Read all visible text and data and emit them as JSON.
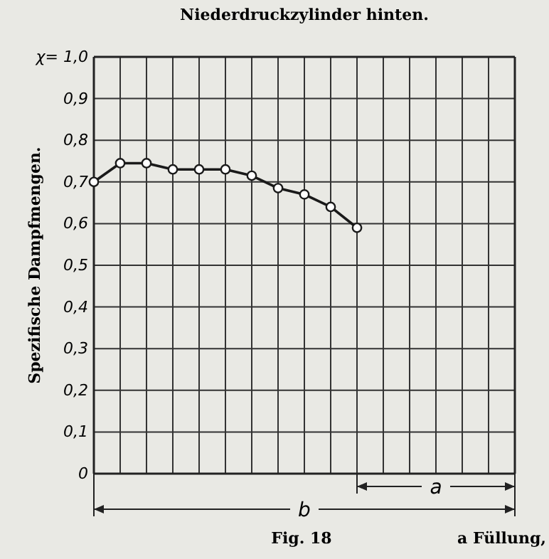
{
  "chart_data": {
    "type": "line",
    "title": "Niederdruckzylinder hinten.",
    "ylabel": "Spezifische Dampfmengen.",
    "categories": [
      null,
      null,
      null,
      null,
      null,
      null,
      null,
      null,
      null,
      null,
      null,
      null,
      null,
      null,
      null,
      null,
      null
    ],
    "series": [
      {
        "color": "#1a1a1a",
        "values": [
          0.7,
          0.745,
          0.745,
          0.73,
          0.73,
          0.73,
          0.715,
          0.685,
          0.67,
          0.64,
          0.59,
          null,
          null,
          null,
          null,
          null,
          null
        ]
      }
    ],
    "ylim": [
      0,
      1
    ],
    "yticks": [
      0,
      {
        "value": 0.1,
        "label": "0,1"
      },
      {
        "value": 0.2,
        "label": "0,2"
      },
      {
        "value": 0.3,
        "label": "0,3"
      },
      {
        "value": 0.4,
        "label": "0,4"
      },
      {
        "value": 0.5,
        "label": "0,5"
      },
      {
        "value": 0.6,
        "label": "0,6"
      },
      {
        "value": 0.7,
        "label": "0,7"
      },
      {
        "value": 0.8,
        "label": "0,8"
      },
      {
        "value": 0.9,
        "label": "0,9"
      },
      {
        "value": 1,
        "label": "χ= 1,0"
      }
    ],
    "grid": true,
    "marker": "circle",
    "line_style": "solid",
    "annotations": [
      "a",
      "b",
      "Fig. 18",
      "a Füllung,"
    ]
  }
}
